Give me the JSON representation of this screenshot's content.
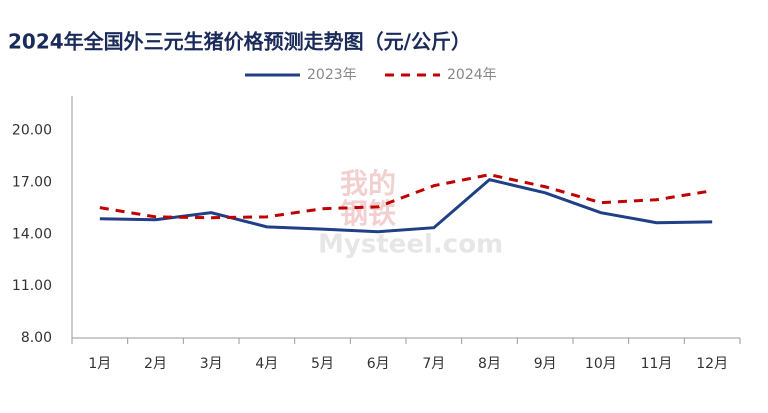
{
  "chart_data": {
    "type": "line",
    "title": "2024年全国外三元生猪价格预测走势图（元/公斤）",
    "categories": [
      "1月",
      "2月",
      "3月",
      "4月",
      "5月",
      "6月",
      "7月",
      "8月",
      "9月",
      "10月",
      "11月",
      "12月"
    ],
    "series": [
      {
        "name": "2023年",
        "color": "#1f3f86",
        "dashed": false,
        "values": [
          14.9,
          14.84,
          15.25,
          14.43,
          14.3,
          14.15,
          14.38,
          17.16,
          16.4,
          15.25,
          14.67,
          14.72
        ]
      },
      {
        "name": "2024年",
        "color": "#c00000",
        "dashed": true,
        "values": [
          15.54,
          15.01,
          14.96,
          15.01,
          15.48,
          15.59,
          16.81,
          17.45,
          16.75,
          15.83,
          16.0,
          16.52
        ]
      }
    ],
    "ylim": [
      8,
      22
    ],
    "yticks": [
      {
        "value": 8,
        "label": "8.00"
      },
      {
        "value": 11,
        "label": "11.00"
      },
      {
        "value": 14,
        "label": "14.00"
      },
      {
        "value": 17,
        "label": "17.00"
      },
      {
        "value": 20,
        "label": "20.00"
      }
    ],
    "grid": false,
    "legend": "top",
    "watermark": [
      "我的",
      "钢铁",
      "Mysteel.com"
    ]
  }
}
